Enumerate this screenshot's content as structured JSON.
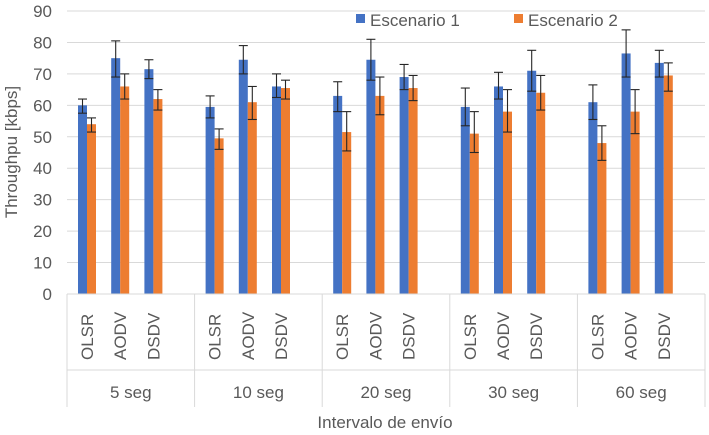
{
  "chart_data": {
    "type": "bar",
    "ylabel": "Throughpu [kbps]",
    "xlabel": "Intervalo de envío",
    "ylim": [
      0,
      90
    ],
    "yticks": [
      0,
      10,
      20,
      30,
      40,
      50,
      60,
      70,
      80,
      90
    ],
    "grid": "horizontal",
    "legend_position": "top-right",
    "groups": [
      "5 seg",
      "10 seg",
      "20 seg",
      "30 seg",
      "60 seg"
    ],
    "protocols": [
      "OLSR",
      "AODV",
      "DSDV"
    ],
    "series": [
      {
        "name": "Escenario 1",
        "color": "#4472C4",
        "values": [
          60,
          75,
          71.5,
          59.5,
          74.5,
          66,
          63,
          74.5,
          69,
          59.5,
          66,
          71,
          61,
          76.5,
          73.5
        ],
        "err_low": [
          57.5,
          69,
          68.5,
          56,
          70,
          62.5,
          58,
          68,
          65,
          53.5,
          62,
          64.5,
          55.5,
          69,
          69
        ],
        "err_high": [
          62,
          80.5,
          74.5,
          63,
          79,
          70,
          67.5,
          81,
          73,
          65.5,
          70.5,
          77.5,
          66.5,
          84,
          77.5
        ]
      },
      {
        "name": "Escenario 2",
        "color": "#ED7D31",
        "values": [
          54,
          66,
          62,
          49.5,
          61,
          65.5,
          51.5,
          63,
          65.5,
          51,
          58,
          64,
          48,
          58,
          69.5
        ],
        "err_low": [
          51.5,
          62,
          58.5,
          46,
          55.5,
          62,
          45.5,
          57,
          61.5,
          45,
          51.5,
          58.5,
          42.5,
          51,
          64.5
        ],
        "err_high": [
          56,
          70,
          65,
          52.5,
          66,
          68,
          58,
          69,
          69.5,
          58,
          65,
          69.5,
          53.5,
          65,
          73.5
        ]
      }
    ]
  }
}
